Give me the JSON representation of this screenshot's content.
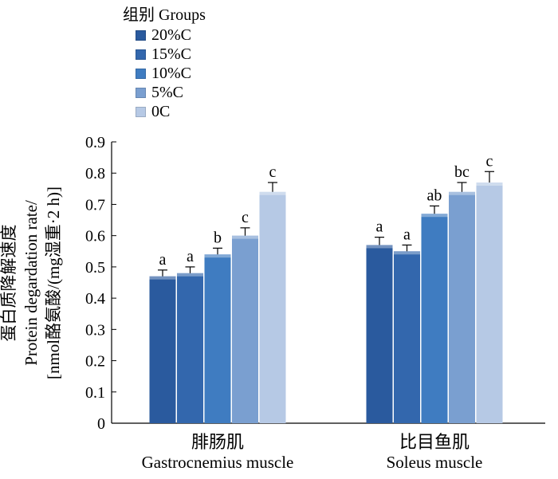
{
  "chart_data": {
    "type": "bar",
    "legend_title": "组别 Groups",
    "legend_position": "top-left",
    "ylabel_lines": [
      "蛋白质降解速度",
      "Protein degardation rate/",
      "[nmol酪氨酸/(mg湿重·2 h)]"
    ],
    "ylim": [
      0,
      0.9
    ],
    "yticks": [
      "0",
      "0.1",
      "0.2",
      "0.3",
      "0.4",
      "0.5",
      "0.6",
      "0.7",
      "0.8",
      "0.9"
    ],
    "grid": false,
    "categories": [
      {
        "cn": "腓肠肌",
        "en": "Gastrocnemius muscle"
      },
      {
        "cn": "比目鱼肌",
        "en": "Soleus muscle"
      }
    ],
    "series": [
      {
        "name": "20%C",
        "color": "#2a5a9e",
        "values": [
          0.47,
          0.57
        ],
        "errors": [
          0.02,
          0.025
        ],
        "labels": [
          "a",
          "a"
        ]
      },
      {
        "name": "15%C",
        "color": "#3367ad",
        "values": [
          0.48,
          0.55
        ],
        "errors": [
          0.02,
          0.02
        ],
        "labels": [
          "a",
          "a"
        ]
      },
      {
        "name": "10%C",
        "color": "#3f7cc1",
        "values": [
          0.54,
          0.67
        ],
        "errors": [
          0.02,
          0.025
        ],
        "labels": [
          "b",
          "ab"
        ]
      },
      {
        "name": "5%C",
        "color": "#7a9fd0",
        "values": [
          0.6,
          0.74
        ],
        "errors": [
          0.025,
          0.03
        ],
        "labels": [
          "c",
          "bc"
        ]
      },
      {
        "name": "0C",
        "color": "#b6c9e5",
        "values": [
          0.74,
          0.77
        ],
        "errors": [
          0.03,
          0.035
        ],
        "labels": [
          "c",
          "c"
        ]
      }
    ]
  }
}
